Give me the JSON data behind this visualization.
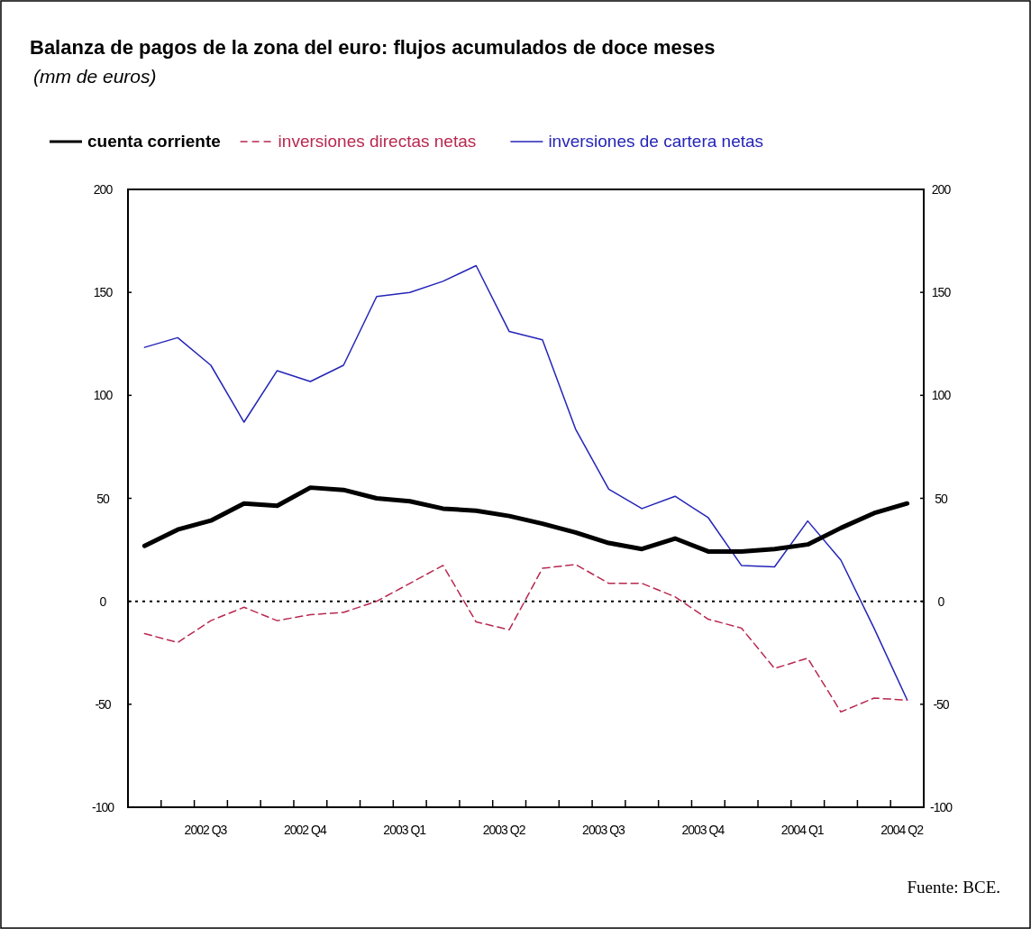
{
  "chart_data": {
    "type": "line",
    "title": "Balanza de pagos de la zona del euro: flujos acumulados de doce meses",
    "subtitle": "(mm de euros)",
    "categories": [
      null,
      null,
      "2002 Q3",
      null,
      null,
      "2002 Q4",
      null,
      null,
      "2003 Q1",
      null,
      null,
      "2003 Q2",
      null,
      null,
      "2003 Q3",
      null,
      null,
      "2003 Q4",
      null,
      null,
      "2004 Q1",
      null,
      null,
      "2004 Q2"
    ],
    "series": [
      {
        "name": "cuenta corriente",
        "color": "#000000",
        "line_style": "solid",
        "values": [
          26.9,
          34.8,
          39.2,
          47.5,
          46.4,
          55.2,
          54.1,
          50,
          48.6,
          45,
          44,
          41.4,
          37.7,
          33.4,
          28.3,
          25.4,
          30.5,
          24.2,
          24.2,
          25.4,
          27.6,
          35.6,
          42.8,
          47.5
        ]
      },
      {
        "name": "inversiones directas netas",
        "color": "#b8284f",
        "line_style": "dashed",
        "values": [
          -15.7,
          -20,
          -9.4,
          -2.9,
          -9.4,
          -6.5,
          -5.4,
          0,
          8.7,
          17.4,
          -10,
          -13.8,
          16,
          17.9,
          8.7,
          8.7,
          2.2,
          -8.7,
          -13,
          -32.6,
          -27.6,
          -53.7,
          -47,
          -48
        ]
      },
      {
        "name": "inversiones de cartera netas",
        "color": "#2424b8",
        "line_style": "solid",
        "values": [
          123.3,
          128,
          114.6,
          87,
          112,
          106.7,
          114.6,
          148,
          150,
          155.4,
          163,
          131,
          127,
          83.6,
          54.4,
          45,
          51,
          40.6,
          17.4,
          16.7,
          39,
          20,
          -13,
          -47.9
        ]
      }
    ],
    "ylim": [
      -100,
      200
    ],
    "yticks": [
      -100,
      -50,
      0,
      50,
      100,
      150,
      200
    ],
    "y2lim": [
      -100,
      200
    ],
    "y2ticks": [
      -100,
      -50,
      0,
      50,
      100,
      150,
      200
    ],
    "ref_lines": [
      {
        "axis": "y",
        "value": 0,
        "color": "#000000",
        "line_style": "dotted"
      }
    ],
    "legend": "top",
    "grid": false,
    "marker": "none",
    "annotations": [
      "Fuente: BCE."
    ]
  }
}
